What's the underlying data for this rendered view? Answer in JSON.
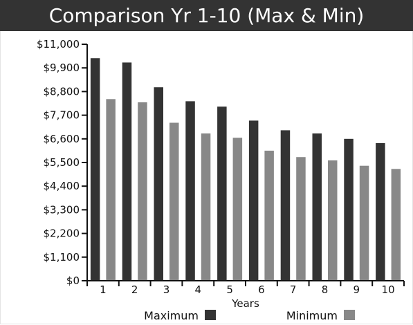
{
  "chart_data": {
    "type": "bar",
    "title": "Comparison Yr 1-10 (Max & Min)",
    "xlabel": "Years",
    "ylabel": "",
    "categories": [
      "1",
      "2",
      "3",
      "4",
      "5",
      "6",
      "7",
      "8",
      "9",
      "10"
    ],
    "series": [
      {
        "name": "Maximum",
        "color": "#333333",
        "values": [
          10350,
          10150,
          9000,
          8350,
          8100,
          7450,
          7000,
          6850,
          6600,
          6400
        ]
      },
      {
        "name": "Minimum",
        "color": "#888888",
        "values": [
          8450,
          8300,
          7350,
          6850,
          6650,
          6050,
          5750,
          5600,
          5350,
          5200
        ]
      }
    ],
    "ylim": [
      0,
      11000
    ],
    "yticks": [
      0,
      1100,
      2200,
      3300,
      4400,
      5500,
      6600,
      7700,
      8800,
      9900,
      11000
    ],
    "ytick_labels": [
      "$0",
      "$1,100",
      "$2,200",
      "$3,300",
      "$4,400",
      "$5,500",
      "$6,600",
      "$7,700",
      "$8,800",
      "$9,900",
      "$11,000"
    ],
    "grid": false,
    "legend": "bottom"
  }
}
